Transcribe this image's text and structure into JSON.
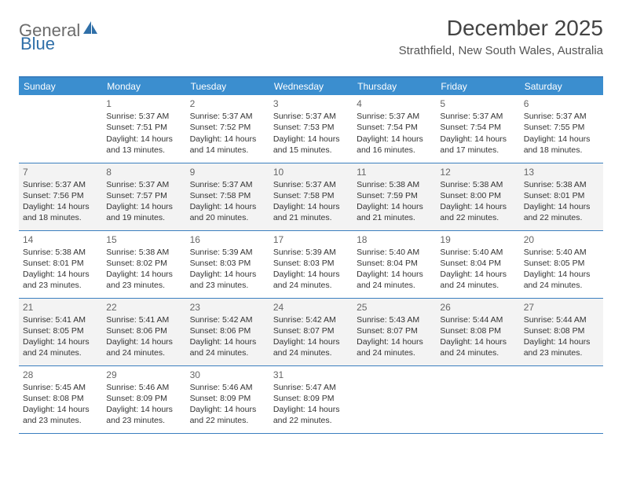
{
  "logo": {
    "text1": "General",
    "text2": "Blue"
  },
  "header": {
    "month_title": "December 2025",
    "location": "Strathfield, New South Wales, Australia"
  },
  "colors": {
    "header_bg": "#3b8ecf",
    "border": "#3b7fbf",
    "alt_row_bg": "#f3f3f3",
    "logo_gray": "#6b6b6b",
    "logo_blue": "#2f6fa8"
  },
  "day_headers": [
    "Sunday",
    "Monday",
    "Tuesday",
    "Wednesday",
    "Thursday",
    "Friday",
    "Saturday"
  ],
  "weeks": [
    [
      null,
      {
        "n": "1",
        "sr": "Sunrise: 5:37 AM",
        "ss": "Sunset: 7:51 PM",
        "d1": "Daylight: 14 hours",
        "d2": "and 13 minutes."
      },
      {
        "n": "2",
        "sr": "Sunrise: 5:37 AM",
        "ss": "Sunset: 7:52 PM",
        "d1": "Daylight: 14 hours",
        "d2": "and 14 minutes."
      },
      {
        "n": "3",
        "sr": "Sunrise: 5:37 AM",
        "ss": "Sunset: 7:53 PM",
        "d1": "Daylight: 14 hours",
        "d2": "and 15 minutes."
      },
      {
        "n": "4",
        "sr": "Sunrise: 5:37 AM",
        "ss": "Sunset: 7:54 PM",
        "d1": "Daylight: 14 hours",
        "d2": "and 16 minutes."
      },
      {
        "n": "5",
        "sr": "Sunrise: 5:37 AM",
        "ss": "Sunset: 7:54 PM",
        "d1": "Daylight: 14 hours",
        "d2": "and 17 minutes."
      },
      {
        "n": "6",
        "sr": "Sunrise: 5:37 AM",
        "ss": "Sunset: 7:55 PM",
        "d1": "Daylight: 14 hours",
        "d2": "and 18 minutes."
      }
    ],
    [
      {
        "n": "7",
        "sr": "Sunrise: 5:37 AM",
        "ss": "Sunset: 7:56 PM",
        "d1": "Daylight: 14 hours",
        "d2": "and 18 minutes."
      },
      {
        "n": "8",
        "sr": "Sunrise: 5:37 AM",
        "ss": "Sunset: 7:57 PM",
        "d1": "Daylight: 14 hours",
        "d2": "and 19 minutes."
      },
      {
        "n": "9",
        "sr": "Sunrise: 5:37 AM",
        "ss": "Sunset: 7:58 PM",
        "d1": "Daylight: 14 hours",
        "d2": "and 20 minutes."
      },
      {
        "n": "10",
        "sr": "Sunrise: 5:37 AM",
        "ss": "Sunset: 7:58 PM",
        "d1": "Daylight: 14 hours",
        "d2": "and 21 minutes."
      },
      {
        "n": "11",
        "sr": "Sunrise: 5:38 AM",
        "ss": "Sunset: 7:59 PM",
        "d1": "Daylight: 14 hours",
        "d2": "and 21 minutes."
      },
      {
        "n": "12",
        "sr": "Sunrise: 5:38 AM",
        "ss": "Sunset: 8:00 PM",
        "d1": "Daylight: 14 hours",
        "d2": "and 22 minutes."
      },
      {
        "n": "13",
        "sr": "Sunrise: 5:38 AM",
        "ss": "Sunset: 8:01 PM",
        "d1": "Daylight: 14 hours",
        "d2": "and 22 minutes."
      }
    ],
    [
      {
        "n": "14",
        "sr": "Sunrise: 5:38 AM",
        "ss": "Sunset: 8:01 PM",
        "d1": "Daylight: 14 hours",
        "d2": "and 23 minutes."
      },
      {
        "n": "15",
        "sr": "Sunrise: 5:38 AM",
        "ss": "Sunset: 8:02 PM",
        "d1": "Daylight: 14 hours",
        "d2": "and 23 minutes."
      },
      {
        "n": "16",
        "sr": "Sunrise: 5:39 AM",
        "ss": "Sunset: 8:03 PM",
        "d1": "Daylight: 14 hours",
        "d2": "and 23 minutes."
      },
      {
        "n": "17",
        "sr": "Sunrise: 5:39 AM",
        "ss": "Sunset: 8:03 PM",
        "d1": "Daylight: 14 hours",
        "d2": "and 24 minutes."
      },
      {
        "n": "18",
        "sr": "Sunrise: 5:40 AM",
        "ss": "Sunset: 8:04 PM",
        "d1": "Daylight: 14 hours",
        "d2": "and 24 minutes."
      },
      {
        "n": "19",
        "sr": "Sunrise: 5:40 AM",
        "ss": "Sunset: 8:04 PM",
        "d1": "Daylight: 14 hours",
        "d2": "and 24 minutes."
      },
      {
        "n": "20",
        "sr": "Sunrise: 5:40 AM",
        "ss": "Sunset: 8:05 PM",
        "d1": "Daylight: 14 hours",
        "d2": "and 24 minutes."
      }
    ],
    [
      {
        "n": "21",
        "sr": "Sunrise: 5:41 AM",
        "ss": "Sunset: 8:05 PM",
        "d1": "Daylight: 14 hours",
        "d2": "and 24 minutes."
      },
      {
        "n": "22",
        "sr": "Sunrise: 5:41 AM",
        "ss": "Sunset: 8:06 PM",
        "d1": "Daylight: 14 hours",
        "d2": "and 24 minutes."
      },
      {
        "n": "23",
        "sr": "Sunrise: 5:42 AM",
        "ss": "Sunset: 8:06 PM",
        "d1": "Daylight: 14 hours",
        "d2": "and 24 minutes."
      },
      {
        "n": "24",
        "sr": "Sunrise: 5:42 AM",
        "ss": "Sunset: 8:07 PM",
        "d1": "Daylight: 14 hours",
        "d2": "and 24 minutes."
      },
      {
        "n": "25",
        "sr": "Sunrise: 5:43 AM",
        "ss": "Sunset: 8:07 PM",
        "d1": "Daylight: 14 hours",
        "d2": "and 24 minutes."
      },
      {
        "n": "26",
        "sr": "Sunrise: 5:44 AM",
        "ss": "Sunset: 8:08 PM",
        "d1": "Daylight: 14 hours",
        "d2": "and 24 minutes."
      },
      {
        "n": "27",
        "sr": "Sunrise: 5:44 AM",
        "ss": "Sunset: 8:08 PM",
        "d1": "Daylight: 14 hours",
        "d2": "and 23 minutes."
      }
    ],
    [
      {
        "n": "28",
        "sr": "Sunrise: 5:45 AM",
        "ss": "Sunset: 8:08 PM",
        "d1": "Daylight: 14 hours",
        "d2": "and 23 minutes."
      },
      {
        "n": "29",
        "sr": "Sunrise: 5:46 AM",
        "ss": "Sunset: 8:09 PM",
        "d1": "Daylight: 14 hours",
        "d2": "and 23 minutes."
      },
      {
        "n": "30",
        "sr": "Sunrise: 5:46 AM",
        "ss": "Sunset: 8:09 PM",
        "d1": "Daylight: 14 hours",
        "d2": "and 22 minutes."
      },
      {
        "n": "31",
        "sr": "Sunrise: 5:47 AM",
        "ss": "Sunset: 8:09 PM",
        "d1": "Daylight: 14 hours",
        "d2": "and 22 minutes."
      },
      null,
      null,
      null
    ]
  ]
}
